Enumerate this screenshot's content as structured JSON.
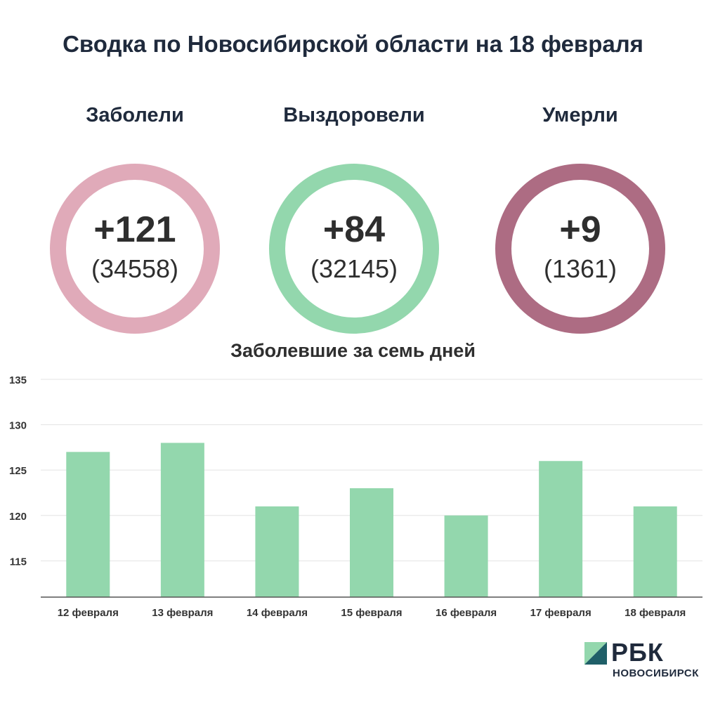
{
  "title": "Сводка по Новосибирской области на 18 февраля",
  "stats": [
    {
      "label": "Заболели",
      "main": "+121",
      "sub": "(34558)",
      "color": "#e0aab9"
    },
    {
      "label": "Выздоровели",
      "main": "+84",
      "sub": "(32145)",
      "color": "#93d7ad"
    },
    {
      "label": "Умерли",
      "main": "+9",
      "sub": "(1361)",
      "color": "#ad6c83"
    }
  ],
  "chart_data": {
    "type": "bar",
    "title": "Заболевшие за семь дней",
    "categories": [
      "12 февраля",
      "13 февраля",
      "14 февраля",
      "15 февраля",
      "16 февраля",
      "17 февраля",
      "18 февраля"
    ],
    "values": [
      127,
      128,
      121,
      123,
      120,
      126,
      121
    ],
    "ylim": [
      111,
      135
    ],
    "yticks": [
      115,
      120,
      125,
      130,
      135
    ],
    "grid": true,
    "bar_color": "#93d7ad"
  },
  "logo": {
    "text": "РБК",
    "subtitle": "НОВОСИБИРСК",
    "colors": [
      "#93d7ad",
      "#1f5f68"
    ]
  }
}
